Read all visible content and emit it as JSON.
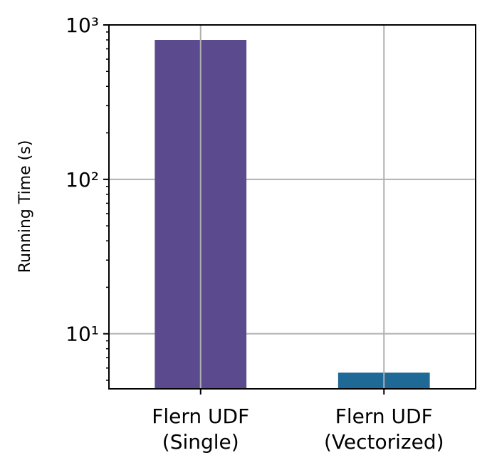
{
  "chart_data": {
    "type": "bar",
    "ylabel": "Running Time (s)",
    "categories": [
      "Flern UDF\n(Single)",
      "Flern UDF\n(Vectorized)"
    ],
    "values": [
      800,
      5.6
    ],
    "colors": [
      "#5c4a8e",
      "#1f6996"
    ],
    "log_y": true,
    "ylim": [
      4.4,
      1000
    ],
    "yticks": [
      {
        "value": 10,
        "label": "10¹"
      },
      {
        "value": 100,
        "label": "10²"
      },
      {
        "value": 1000,
        "label": "10³"
      }
    ],
    "yminorticks": [
      5,
      6,
      7,
      8,
      9,
      20,
      30,
      40,
      50,
      60,
      70,
      80,
      90,
      200,
      300,
      400,
      500,
      600,
      700,
      800,
      900
    ],
    "grid": true
  }
}
